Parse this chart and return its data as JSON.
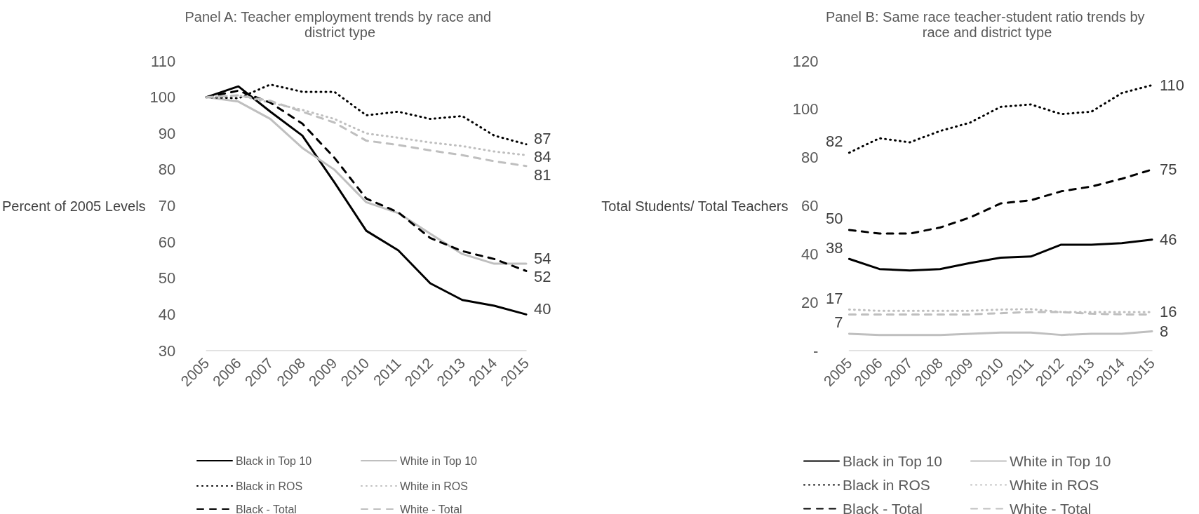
{
  "chart_data": [
    {
      "type": "line",
      "title": "Panel A: Teacher employment trends by race and district type",
      "ylabel": "Percent of 2005 Levels",
      "categories": [
        "2005",
        "2006",
        "2007",
        "2008",
        "2009",
        "2010",
        "2011",
        "2012",
        "2013",
        "2014",
        "2015"
      ],
      "ylim": [
        30,
        110
      ],
      "yticks": [
        30,
        40,
        50,
        60,
        70,
        80,
        90,
        100,
        110
      ],
      "grid": false,
      "legend": "bottom",
      "marker": "none",
      "series": [
        {
          "name": "Black in Top 10",
          "color": "#000000",
          "line_style": "solid",
          "values": [
            100,
            103,
            96,
            89.4,
            76.5,
            63.1,
            57.7,
            48.6,
            44,
            42.4,
            40
          ],
          "value_labels": [
            null,
            null,
            null,
            null,
            null,
            null,
            null,
            null,
            null,
            null,
            "40"
          ]
        },
        {
          "name": "White in Top 10",
          "color": "#bfbfbf",
          "line_style": "solid",
          "values": [
            100,
            98.8,
            94,
            86,
            80,
            71,
            68,
            62.3,
            56.7,
            54,
            54
          ],
          "value_labels": [
            null,
            null,
            null,
            null,
            null,
            null,
            null,
            null,
            null,
            null,
            "54"
          ]
        },
        {
          "name": "Black in ROS",
          "color": "#000000",
          "line_style": "dotted",
          "values": [
            100,
            99.7,
            103.5,
            101.5,
            101.5,
            95,
            96,
            94,
            94.8,
            89.4,
            87
          ],
          "value_labels": [
            null,
            null,
            null,
            null,
            null,
            null,
            null,
            null,
            null,
            null,
            "87"
          ]
        },
        {
          "name": "White in ROS",
          "color": "#bfbfbf",
          "line_style": "dotted",
          "values": [
            100,
            100.5,
            98.5,
            96.5,
            94,
            90,
            88.8,
            87.5,
            86.5,
            85,
            84
          ],
          "value_labels": [
            null,
            null,
            null,
            null,
            null,
            null,
            null,
            null,
            null,
            null,
            "84"
          ]
        },
        {
          "name": "Black - Total",
          "color": "#000000",
          "line_style": "dashed",
          "values": [
            100,
            101.8,
            98.5,
            92.7,
            83.3,
            72,
            68.2,
            61.1,
            57.5,
            55.3,
            52
          ],
          "value_labels": [
            null,
            null,
            null,
            null,
            null,
            null,
            null,
            null,
            null,
            null,
            "52"
          ]
        },
        {
          "name": "White - Total",
          "color": "#bfbfbf",
          "line_style": "dashed",
          "values": [
            100,
            100.5,
            99,
            96,
            93,
            88,
            86.8,
            85.3,
            84,
            82.3,
            81
          ],
          "value_labels": [
            null,
            null,
            null,
            null,
            null,
            null,
            null,
            null,
            null,
            null,
            "81"
          ]
        }
      ]
    },
    {
      "type": "line",
      "title": "Panel B: Same race teacher-student ratio trends by race and district type",
      "ylabel": "Total Students/ Total Teachers",
      "categories": [
        "2005",
        "2006",
        "2007",
        "2008",
        "2009",
        "2010",
        "2011",
        "2012",
        "2013",
        "2014",
        "2015"
      ],
      "ylim": [
        0,
        120
      ],
      "yticks": [
        {
          "value": 0,
          "label": "-"
        },
        20,
        40,
        60,
        80,
        100,
        120
      ],
      "grid": false,
      "legend": "bottom",
      "marker": "none",
      "series": [
        {
          "name": "Black in Top 10",
          "color": "#000000",
          "line_style": "solid",
          "values": [
            38,
            33.8,
            33.2,
            33.8,
            36.3,
            38.5,
            39,
            43.9,
            43.9,
            44.5,
            46
          ],
          "value_labels": [
            "38",
            null,
            null,
            null,
            null,
            null,
            null,
            null,
            null,
            null,
            "46"
          ]
        },
        {
          "name": "White in Top 10",
          "color": "#bfbfbf",
          "line_style": "solid",
          "values": [
            7,
            6.5,
            6.5,
            6.5,
            7,
            7.5,
            7.5,
            6.5,
            7,
            7,
            8
          ],
          "value_labels": [
            "7",
            null,
            null,
            null,
            null,
            null,
            null,
            null,
            null,
            null,
            "8"
          ]
        },
        {
          "name": "Black in ROS",
          "color": "#000000",
          "line_style": "dotted",
          "values": [
            82,
            88,
            86.3,
            91,
            94.5,
            101,
            102,
            98,
            99,
            106.7,
            110
          ],
          "value_labels": [
            "82",
            null,
            null,
            null,
            null,
            null,
            null,
            null,
            null,
            null,
            "110"
          ]
        },
        {
          "name": "White in ROS",
          "color": "#bfbfbf",
          "line_style": "dotted",
          "values": [
            17,
            16.5,
            16.5,
            16.5,
            16.5,
            17,
            17.2,
            16,
            16,
            16,
            16
          ],
          "value_labels": [
            "17",
            null,
            null,
            null,
            null,
            null,
            null,
            null,
            null,
            null,
            "16"
          ]
        },
        {
          "name": "Black - Total",
          "color": "#000000",
          "line_style": "dashed",
          "values": [
            50,
            48.5,
            48.5,
            51,
            55.2,
            61,
            62.3,
            66,
            68,
            71.2,
            75
          ],
          "value_labels": [
            "50",
            null,
            null,
            null,
            null,
            null,
            null,
            null,
            null,
            null,
            "75"
          ]
        },
        {
          "name": "White - Total",
          "color": "#bfbfbf",
          "line_style": "dashed",
          "values": [
            15,
            15,
            15,
            15,
            15,
            15.5,
            16,
            16,
            15.3,
            15,
            15
          ]
        }
      ]
    }
  ]
}
